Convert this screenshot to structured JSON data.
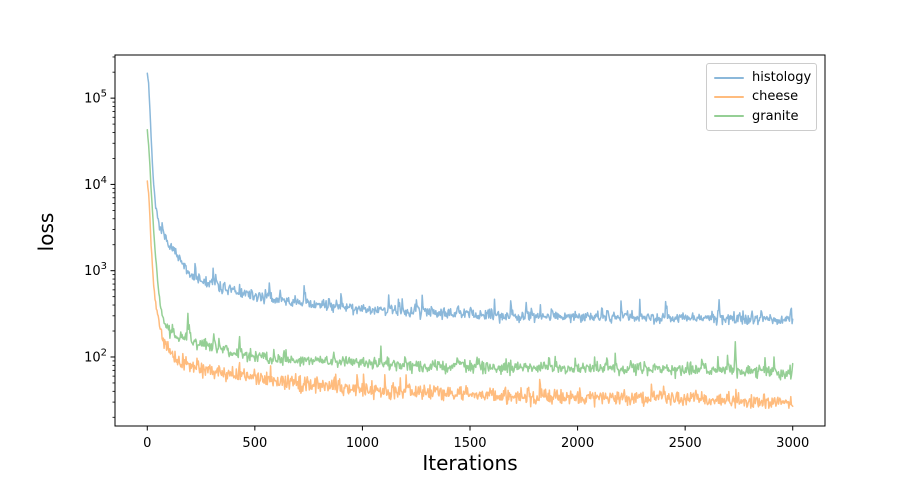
{
  "chart_data": {
    "type": "line",
    "title": "",
    "xlabel": "Iterations",
    "ylabel": "loss",
    "x_axis": {
      "min": -150,
      "max": 3150,
      "ticks": [
        0,
        500,
        1000,
        1500,
        2000,
        2500,
        3000
      ]
    },
    "y_axis": {
      "scale": "log",
      "min": 15.85,
      "max": 316228,
      "major_tick_exponents": [
        2,
        3,
        4,
        5
      ],
      "tick_base": "10"
    },
    "grid": false,
    "legend": {
      "position": "upper right",
      "entries": [
        "histology",
        "cheese",
        "granite"
      ]
    },
    "series": [
      {
        "name": "histology",
        "color": "#8bb8da",
        "line_width": 1.5,
        "noise_sigma_log": 0.032,
        "spike_rate": 0.05,
        "spike_amp_log": 0.2,
        "seed": 7,
        "anchors": [
          [
            0,
            195000
          ],
          [
            6,
            150000
          ],
          [
            14,
            60000
          ],
          [
            25,
            15000
          ],
          [
            40,
            5000
          ],
          [
            55,
            3200
          ],
          [
            75,
            2500
          ],
          [
            100,
            2100
          ],
          [
            130,
            1600
          ],
          [
            155,
            1250
          ],
          [
            200,
            880
          ],
          [
            250,
            770
          ],
          [
            300,
            700
          ],
          [
            400,
            580
          ],
          [
            500,
            500
          ],
          [
            620,
            450
          ],
          [
            750,
            415
          ],
          [
            900,
            380
          ],
          [
            1050,
            355
          ],
          [
            1200,
            340
          ],
          [
            1400,
            320
          ],
          [
            1600,
            305
          ],
          [
            1800,
            297
          ],
          [
            2000,
            292
          ],
          [
            2200,
            288
          ],
          [
            2500,
            282
          ],
          [
            2800,
            277
          ],
          [
            3000,
            270
          ]
        ],
        "events": []
      },
      {
        "name": "cheese",
        "color": "#ffbc7e",
        "line_width": 1.5,
        "noise_sigma_log": 0.045,
        "spike_rate": 0.05,
        "spike_amp_log": 0.16,
        "seed": 13,
        "anchors": [
          [
            0,
            11000
          ],
          [
            8,
            7000
          ],
          [
            18,
            2000
          ],
          [
            30,
            700
          ],
          [
            40,
            400
          ],
          [
            55,
            250
          ],
          [
            75,
            150
          ],
          [
            100,
            110
          ],
          [
            130,
            95
          ],
          [
            170,
            85
          ],
          [
            220,
            78
          ],
          [
            300,
            70
          ],
          [
            400,
            63
          ],
          [
            500,
            57
          ],
          [
            620,
            52
          ],
          [
            750,
            48
          ],
          [
            900,
            44
          ],
          [
            1100,
            41
          ],
          [
            1350,
            38
          ],
          [
            1600,
            36
          ],
          [
            1850,
            34.5
          ],
          [
            2100,
            33.5
          ],
          [
            2350,
            33
          ],
          [
            2600,
            32
          ],
          [
            2800,
            30
          ],
          [
            3000,
            28.5
          ]
        ],
        "events": []
      },
      {
        "name": "granite",
        "color": "#95cf95",
        "line_width": 1.5,
        "noise_sigma_log": 0.036,
        "spike_rate": 0.045,
        "spike_amp_log": 0.16,
        "seed": 5,
        "anchors": [
          [
            0,
            43000
          ],
          [
            8,
            25000
          ],
          [
            18,
            9000
          ],
          [
            30,
            2800
          ],
          [
            42,
            1100
          ],
          [
            55,
            500
          ],
          [
            70,
            300
          ],
          [
            85,
            240
          ],
          [
            100,
            205
          ],
          [
            140,
            175
          ],
          [
            180,
            162
          ],
          [
            250,
            140
          ],
          [
            300,
            128
          ],
          [
            380,
            116
          ],
          [
            480,
            106
          ],
          [
            600,
            97
          ],
          [
            750,
            91
          ],
          [
            950,
            85
          ],
          [
            1200,
            80
          ],
          [
            1500,
            77
          ],
          [
            1800,
            75
          ],
          [
            2100,
            73
          ],
          [
            2400,
            71.5
          ],
          [
            2700,
            70
          ],
          [
            3000,
            67
          ]
        ],
        "events": [
          [
            190,
            320
          ],
          [
            310,
            185
          ],
          [
            2733,
            150
          ]
        ]
      }
    ]
  }
}
